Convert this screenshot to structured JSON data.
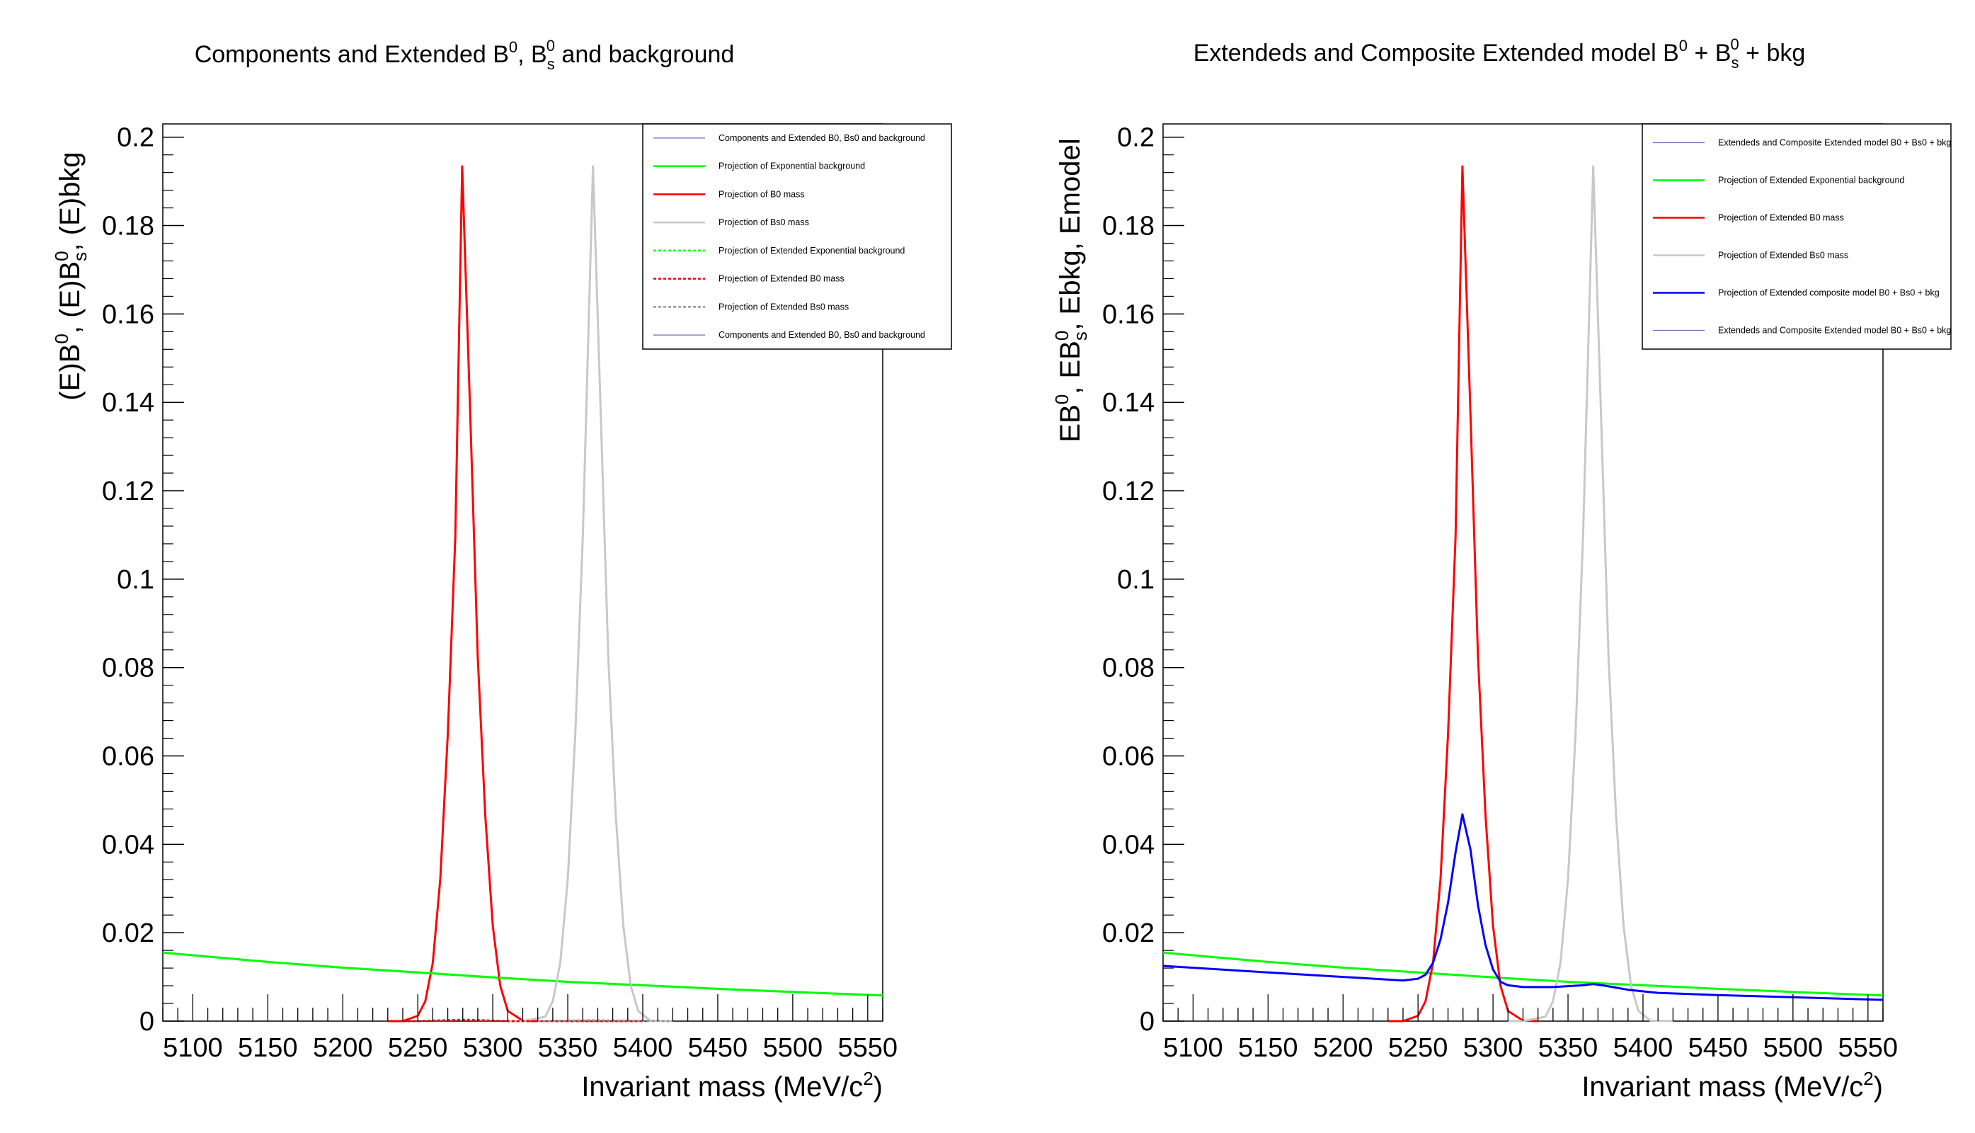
{
  "chart_data": [
    {
      "type": "line",
      "title": "Components and Extended B0, Bs0 and background",
      "title_parts": {
        "pre": "Components and Extended B",
        "sup1": "0",
        "mid": ", B",
        "sub": "s",
        "sup2": "0",
        "post": " and background"
      },
      "xlabel": "Invariant mass (MeV/c2)",
      "ylabel": "(E)B0, (E)Bs0, (E)bkg",
      "xlim": [
        5080,
        5560
      ],
      "ylim": [
        0,
        0.203
      ],
      "xticks": [
        "5100",
        "5150",
        "5200",
        "5250",
        "5300",
        "5350",
        "5400",
        "5450",
        "5500",
        "5550"
      ],
      "yticks": [
        "0",
        "0.02",
        "0.04",
        "0.06",
        "0.08",
        "0.1",
        "0.12",
        "0.14",
        "0.16",
        "0.18",
        "0.2"
      ],
      "grid": false,
      "legend_position": "top-right",
      "legend": [
        "Components and Extended B0, Bs0 and background",
        "Projection of Exponential background",
        "Projection of B0 mass",
        "Projection of Bs0 mass",
        "Projection of Extended Exponential background",
        "Projection of Extended B0 mass",
        "Projection of Extended Bs0 mass",
        "Components and Extended B0, Bs0 and background"
      ],
      "series": [
        {
          "name": "Projection of Exponential background",
          "color": "#00ff00",
          "style": "solid",
          "x": [
            5080,
            5150,
            5200,
            5250,
            5300,
            5350,
            5400,
            5450,
            5500,
            5560
          ],
          "y": [
            0.0155,
            0.0134,
            0.0121,
            0.011,
            0.0099,
            0.0089,
            0.0081,
            0.0073,
            0.0066,
            0.0058
          ]
        },
        {
          "name": "Projection of B0 mass",
          "color": "#ff0000",
          "style": "solid",
          "x": [
            5230,
            5240,
            5250,
            5255,
            5260,
            5265,
            5270,
            5275,
            5279.6,
            5285,
            5290,
            5295,
            5300,
            5305,
            5310,
            5320,
            5330
          ],
          "y": [
            0.0,
            0.0,
            0.0012,
            0.0045,
            0.0132,
            0.0322,
            0.065,
            0.1096,
            0.1934,
            0.1372,
            0.0824,
            0.0466,
            0.0216,
            0.008,
            0.0023,
            0.0001,
            0.0
          ]
        },
        {
          "name": "Projection of Bs0 mass",
          "color": "#c8c8c8",
          "style": "solid",
          "x": [
            5310,
            5320,
            5335,
            5340,
            5345,
            5350,
            5355,
            5360,
            5366.8,
            5372,
            5377,
            5382,
            5387,
            5392,
            5397,
            5405,
            5420
          ],
          "y": [
            0.0,
            0.0,
            0.001,
            0.0045,
            0.0132,
            0.0322,
            0.065,
            0.1096,
            0.1934,
            0.1372,
            0.0824,
            0.0466,
            0.0216,
            0.008,
            0.0023,
            0.0001,
            0.0
          ]
        },
        {
          "name": "Projection of Extended Exponential background",
          "color": "#00ff00",
          "style": "dotted",
          "x": [
            5080,
            5150,
            5200,
            5250,
            5300,
            5350,
            5400,
            5450,
            5500,
            5560
          ],
          "y": [
            0.0155,
            0.0134,
            0.0121,
            0.011,
            0.0099,
            0.0089,
            0.0081,
            0.0073,
            0.0066,
            0.0058
          ]
        },
        {
          "name": "Projection of Extended B0 mass",
          "color": "#ff0000",
          "style": "dotted",
          "x": [
            5230,
            5250,
            5279.6,
            5310,
            5330,
            5400
          ],
          "y": [
            0.0,
            0.0,
            0.0003,
            0.0,
            0.0,
            0.0
          ]
        },
        {
          "name": "Projection of Extended Bs0 mass",
          "color": "#999999",
          "style": "dotted",
          "x": [
            5330,
            5366.8,
            5420
          ],
          "y": [
            0.0,
            0.0002,
            0.0
          ]
        }
      ]
    },
    {
      "type": "line",
      "title": "Extendeds and Composite Extended model B0 + Bs0 + bkg",
      "title_parts": {
        "pre": "Extendeds and Composite Extended model B",
        "sup1": "0",
        "mid": " + B",
        "sub": "s",
        "sup2": "0",
        "post": " + bkg"
      },
      "xlabel": "Invariant mass (MeV/c2)",
      "ylabel": "EB0, EBs0, Ebkg, Emodel",
      "xlim": [
        5080,
        5560
      ],
      "ylim": [
        0,
        0.203
      ],
      "xticks": [
        "5100",
        "5150",
        "5200",
        "5250",
        "5300",
        "5350",
        "5400",
        "5450",
        "5500",
        "5550"
      ],
      "yticks": [
        "0",
        "0.02",
        "0.04",
        "0.06",
        "0.08",
        "0.1",
        "0.12",
        "0.14",
        "0.16",
        "0.18",
        "0.2"
      ],
      "grid": false,
      "legend_position": "top-right",
      "legend": [
        "Extendeds and Composite Extended model B0 + Bs0 + bkg",
        "Projection of Extended Exponential background",
        "Projection of Extended B0 mass",
        "Projection of Extended Bs0 mass",
        "Projection of Extended composite model B0 + Bs0 + bkg",
        "Extendeds and Composite Extended model B0 + Bs0 + bkg"
      ],
      "series": [
        {
          "name": "Projection of Extended Exponential background",
          "color": "#00ff00",
          "style": "solid",
          "x": [
            5080,
            5150,
            5200,
            5250,
            5300,
            5350,
            5400,
            5450,
            5500,
            5560
          ],
          "y": [
            0.0155,
            0.0134,
            0.0121,
            0.011,
            0.0099,
            0.0089,
            0.0081,
            0.0073,
            0.0066,
            0.0058
          ]
        },
        {
          "name": "Projection of Extended B0 mass",
          "color": "#ff0000",
          "style": "solid",
          "x": [
            5230,
            5240,
            5250,
            5255,
            5260,
            5265,
            5270,
            5275,
            5279.6,
            5285,
            5290,
            5295,
            5300,
            5305,
            5310,
            5320,
            5330
          ],
          "y": [
            0.0,
            0.0,
            0.0012,
            0.0045,
            0.0132,
            0.0322,
            0.065,
            0.1096,
            0.1934,
            0.1372,
            0.0824,
            0.0466,
            0.0216,
            0.008,
            0.0023,
            0.0001,
            0.0
          ]
        },
        {
          "name": "Projection of Extended Bs0 mass",
          "color": "#c8c8c8",
          "style": "solid",
          "x": [
            5310,
            5320,
            5335,
            5340,
            5345,
            5350,
            5355,
            5360,
            5366.8,
            5372,
            5377,
            5382,
            5387,
            5392,
            5397,
            5405,
            5420
          ],
          "y": [
            0.0,
            0.0,
            0.001,
            0.0045,
            0.0132,
            0.0322,
            0.065,
            0.1096,
            0.1934,
            0.1372,
            0.0824,
            0.0466,
            0.0216,
            0.008,
            0.0023,
            0.0001,
            0.0
          ]
        },
        {
          "name": "Projection of Extended composite model B0 + Bs0 + bkg",
          "color": "#0000ff",
          "style": "solid",
          "x": [
            5080,
            5150,
            5200,
            5240,
            5250,
            5255,
            5260,
            5265,
            5270,
            5275,
            5279.6,
            5285,
            5290,
            5295,
            5300,
            5305,
            5310,
            5320,
            5340,
            5360,
            5366.8,
            5375,
            5390,
            5410,
            5450,
            5500,
            5560
          ],
          "y": [
            0.0125,
            0.011,
            0.01,
            0.0092,
            0.0096,
            0.0105,
            0.0132,
            0.0185,
            0.0268,
            0.0382,
            0.0468,
            0.0388,
            0.0262,
            0.0172,
            0.0117,
            0.0089,
            0.0081,
            0.0077,
            0.0077,
            0.0081,
            0.0084,
            0.008,
            0.0071,
            0.0064,
            0.0059,
            0.0054,
            0.0048
          ]
        }
      ]
    }
  ]
}
